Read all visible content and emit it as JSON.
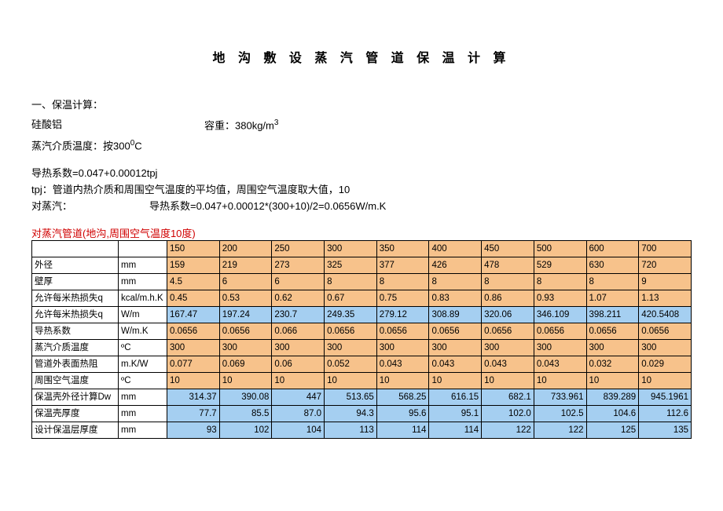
{
  "title": "地 沟 敷 设 蒸 汽 管 道 保 温 计 算",
  "sec1_header": "一、保温计算：",
  "material_label": "硅酸铝",
  "density_label": "容重：380kg/m",
  "density_sup": "3",
  "temp_label": "蒸汽介质温度：按300",
  "temp_sup": "0",
  "temp_unit": "C",
  "formula1": "导热系数=0.047+0.00012tpj",
  "tpj_note": "tpj：管道内热介质和周围空气温度的平均值，周围空气温度取大值，10",
  "steam_label": "对蒸汽：",
  "steam_formula": "导热系数=0.047+0.00012*(300+10)/2=0.0656W/m.K",
  "red_header": "对蒸汽管道(地沟,周围空气温度10度)",
  "param_labels": [
    "外径",
    "壁厚",
    "允许每米热损失q",
    "允许每米热损失q",
    "导热系数",
    "蒸汽介质温度",
    "管道外表面热阻",
    "周围空气温度",
    "保温壳外径计算Dw",
    "保温壳厚度",
    "设计保温层厚度"
  ],
  "units": [
    "mm",
    "mm",
    "kcal/m.h.K",
    "W/m",
    "W/m.K",
    "ºC",
    "m.K/W",
    "ºC",
    "mm",
    "mm",
    "mm"
  ],
  "dn_row": [
    "150",
    "200",
    "250",
    "300",
    "350",
    "400",
    "450",
    "500",
    "600",
    "700"
  ],
  "header_colors": [
    "orange",
    "orange",
    "orange",
    "orange",
    "orange",
    "orange",
    "orange",
    "orange",
    "orange",
    "orange"
  ],
  "rows": [
    {
      "vals": [
        "159",
        "219",
        "273",
        "325",
        "377",
        "426",
        "478",
        "529",
        "630",
        "720"
      ],
      "colors": [
        "orange",
        "orange",
        "orange",
        "orange",
        "orange",
        "orange",
        "orange",
        "orange",
        "orange",
        "orange"
      ],
      "align": "left"
    },
    {
      "vals": [
        "4.5",
        "6",
        "6",
        "8",
        "8",
        "8",
        "8",
        "8",
        "8",
        "9"
      ],
      "colors": [
        "orange",
        "orange",
        "orange",
        "orange",
        "orange",
        "orange",
        "orange",
        "orange",
        "orange",
        "orange"
      ],
      "align": "left"
    },
    {
      "vals": [
        "0.45",
        "0.53",
        "0.62",
        "0.67",
        "0.75",
        "0.83",
        "0.86",
        "0.93",
        "1.07",
        "1.13"
      ],
      "colors": [
        "orange",
        "orange",
        "orange",
        "orange",
        "orange",
        "orange",
        "orange",
        "orange",
        "orange",
        "orange"
      ],
      "align": "left"
    },
    {
      "vals": [
        "167.47",
        "197.24",
        "230.7",
        "249.35",
        "279.12",
        "308.89",
        "320.06",
        "346.109",
        "398.211",
        "420.5408"
      ],
      "colors": [
        "blue",
        "blue",
        "blue",
        "blue",
        "blue",
        "blue",
        "blue",
        "blue",
        "blue",
        "blue"
      ],
      "align": "left"
    },
    {
      "vals": [
        "0.0656",
        "0.0656",
        "0.066",
        "0.0656",
        "0.0656",
        "0.0656",
        "0.0656",
        "0.0656",
        "0.0656",
        "0.0656"
      ],
      "colors": [
        "orange",
        "orange",
        "orange",
        "orange",
        "orange",
        "orange",
        "orange",
        "orange",
        "orange",
        "orange"
      ],
      "align": "left"
    },
    {
      "vals": [
        "300",
        "300",
        "300",
        "300",
        "300",
        "300",
        "300",
        "300",
        "300",
        "300"
      ],
      "colors": [
        "orange",
        "orange",
        "orange",
        "orange",
        "orange",
        "orange",
        "orange",
        "orange",
        "orange",
        "orange"
      ],
      "align": "left"
    },
    {
      "vals": [
        "0.077",
        "0.069",
        "0.06",
        "0.052",
        "0.043",
        "0.043",
        "0.043",
        "0.043",
        "0.032",
        "0.029"
      ],
      "colors": [
        "orange",
        "orange",
        "orange",
        "orange",
        "orange",
        "orange",
        "orange",
        "orange",
        "orange",
        "orange"
      ],
      "align": "left"
    },
    {
      "vals": [
        "10",
        "10",
        "10",
        "10",
        "10",
        "10",
        "10",
        "10",
        "10",
        "10"
      ],
      "colors": [
        "orange",
        "orange",
        "orange",
        "orange",
        "orange",
        "orange",
        "orange",
        "orange",
        "orange",
        "orange"
      ],
      "align": "left"
    },
    {
      "vals": [
        "314.37",
        "390.08",
        "447",
        "513.65",
        "568.25",
        "616.15",
        "682.1",
        "733.961",
        "839.289",
        "945.1961"
      ],
      "colors": [
        "blue",
        "blue",
        "blue",
        "blue",
        "blue",
        "blue",
        "blue",
        "blue",
        "blue",
        "blue"
      ],
      "align": "right"
    },
    {
      "vals": [
        "77.7",
        "85.5",
        "87.0",
        "94.3",
        "95.6",
        "95.1",
        "102.0",
        "102.5",
        "104.6",
        "112.6"
      ],
      "colors": [
        "blue",
        "blue",
        "blue",
        "blue",
        "blue",
        "blue",
        "blue",
        "blue",
        "blue",
        "blue"
      ],
      "align": "right"
    },
    {
      "vals": [
        "93",
        "102",
        "104",
        "113",
        "114",
        "114",
        "122",
        "122",
        "125",
        "135"
      ],
      "colors": [
        "blue",
        "blue",
        "blue",
        "blue",
        "blue",
        "blue",
        "blue",
        "blue",
        "blue",
        "blue"
      ],
      "align": "right"
    }
  ]
}
